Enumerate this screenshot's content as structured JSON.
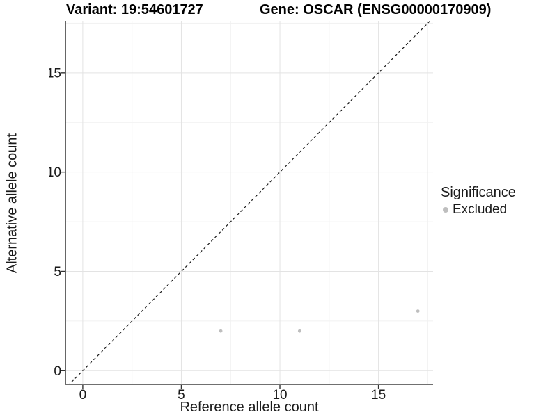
{
  "chart_data": {
    "type": "scatter",
    "title_left": "Variant: 19:54601727",
    "title_right": "Gene: OSCAR (ENSG00000170909)",
    "xlabel": "Reference allele count",
    "ylabel": "Alternative allele count",
    "xlim": [
      -0.88,
      17.77
    ],
    "ylim": [
      -0.69,
      17.62
    ],
    "x_ticks": [
      0,
      5,
      10,
      15
    ],
    "y_ticks": [
      0,
      5,
      10,
      15
    ],
    "x_minor_ticks": [
      2.5,
      7.5,
      12.5,
      17.5
    ],
    "y_minor_ticks": [
      2.5,
      7.5,
      12.5,
      17.5
    ],
    "grid": true,
    "identity_line": {
      "style": "dashed",
      "slope": 1,
      "intercept": 0
    },
    "series": [
      {
        "name": "Excluded",
        "color": "#bebebe",
        "points": [
          [
            7,
            2
          ],
          [
            11,
            2
          ],
          [
            17,
            3
          ]
        ]
      }
    ],
    "legend": {
      "title": "Significance",
      "position": "right",
      "entries": [
        {
          "label": "Excluded",
          "color": "#bebebe"
        }
      ]
    },
    "colors": {
      "background": "#ffffff",
      "grid_major": "#e3e3e3",
      "grid_minor": "#f1f1f1",
      "axis_line": "#404040",
      "tick_mark": "#333333",
      "identity_line": "#1a1a1a",
      "point": "#bebebe",
      "text": "#1a1a1a"
    }
  }
}
